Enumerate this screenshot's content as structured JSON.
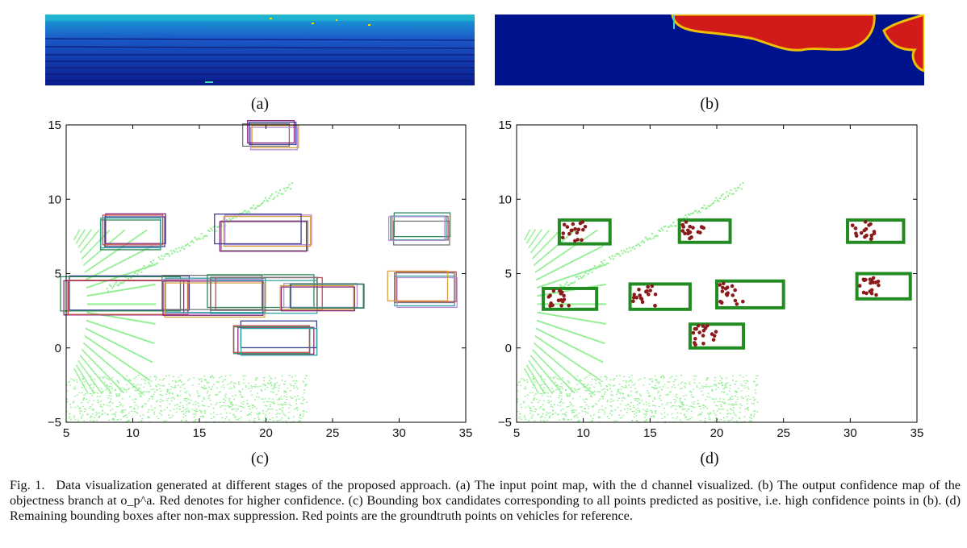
{
  "figure": {
    "panels": {
      "a": {
        "label": "(a)",
        "description": "input point map, d channel"
      },
      "b": {
        "label": "(b)",
        "description": "objectness confidence map"
      },
      "c": {
        "label": "(c)"
      },
      "d": {
        "label": "(d)"
      }
    },
    "caption": {
      "fig_no": "Fig. 1.",
      "text": "Data visualization generated at different stages of the proposed approach. (a) The input point map, with the d channel visualized. (b) The output confidence map of the objectness branch at o_p^a. Red denotes for higher confidence. (c) Bounding box candidates corresponding to all points predicted as positive, i.e. high confidence points in (b). (d) Remaining bounding boxes after non-max suppression. Red points are the groundtruth points on vehicles for reference."
    }
  },
  "chart_data": [
    {
      "type": "scatter",
      "panel": "c",
      "title": "",
      "xlabel": "",
      "ylabel": "",
      "xlim": [
        5,
        35
      ],
      "ylim": [
        -5,
        15
      ],
      "xticks": [
        5,
        10,
        15,
        20,
        25,
        30,
        35
      ],
      "yticks": [
        -5,
        0,
        5,
        10,
        15
      ],
      "boxes": [
        {
          "x": [
            8,
            12.5
          ],
          "y": [
            6.8,
            8.8
          ]
        },
        {
          "x": [
            16.5,
            23
          ],
          "y": [
            6.8,
            8.8
          ]
        },
        {
          "x": [
            29.3,
            33.5
          ],
          "y": [
            7.2,
            8.8
          ]
        },
        {
          "x": [
            5,
            14
          ],
          "y": [
            2.3,
            4.6
          ]
        },
        {
          "x": [
            12.5,
            20
          ],
          "y": [
            2.3,
            4.6
          ]
        },
        {
          "x": [
            16,
            24
          ],
          "y": [
            2.6,
            4.8
          ]
        },
        {
          "x": [
            21.5,
            27
          ],
          "y": [
            2.6,
            4.2
          ]
        },
        {
          "x": [
            29.5,
            34
          ],
          "y": [
            3.0,
            5.0
          ]
        },
        {
          "x": [
            17.8,
            23.5
          ],
          "y": [
            -0.2,
            1.6
          ]
        },
        {
          "x": [
            18.5,
            22
          ],
          "y": [
            13.5,
            15
          ]
        }
      ],
      "box_colors": [
        "#8a2a7a",
        "#3a3f8f",
        "#2e8b57",
        "#c44b4b",
        "#33a3a3",
        "#777777",
        "#b58fd6",
        "#d8a040"
      ],
      "point_color": "#90ee90"
    },
    {
      "type": "scatter",
      "panel": "d",
      "title": "",
      "xlabel": "",
      "ylabel": "",
      "xlim": [
        5,
        35
      ],
      "ylim": [
        -5,
        15
      ],
      "xticks": [
        5,
        10,
        15,
        20,
        25,
        30,
        35
      ],
      "yticks": [
        -5,
        0,
        5,
        10,
        15
      ],
      "boxes": [
        {
          "x": [
            8.2,
            12
          ],
          "y": [
            7.0,
            8.6
          ]
        },
        {
          "x": [
            17.2,
            21
          ],
          "y": [
            7.1,
            8.6
          ]
        },
        {
          "x": [
            29.8,
            34
          ],
          "y": [
            7.1,
            8.6
          ]
        },
        {
          "x": [
            7,
            11
          ],
          "y": [
            2.6,
            4.0
          ]
        },
        {
          "x": [
            13.5,
            18
          ],
          "y": [
            2.6,
            4.3
          ]
        },
        {
          "x": [
            20,
            25
          ],
          "y": [
            2.7,
            4.5
          ]
        },
        {
          "x": [
            30.5,
            34.5
          ],
          "y": [
            3.3,
            5.0
          ]
        },
        {
          "x": [
            18,
            22
          ],
          "y": [
            0,
            1.6
          ]
        }
      ],
      "box_color": "#228b22",
      "groundtruth_color": "#8b1a1a",
      "point_color": "#90ee90"
    }
  ]
}
